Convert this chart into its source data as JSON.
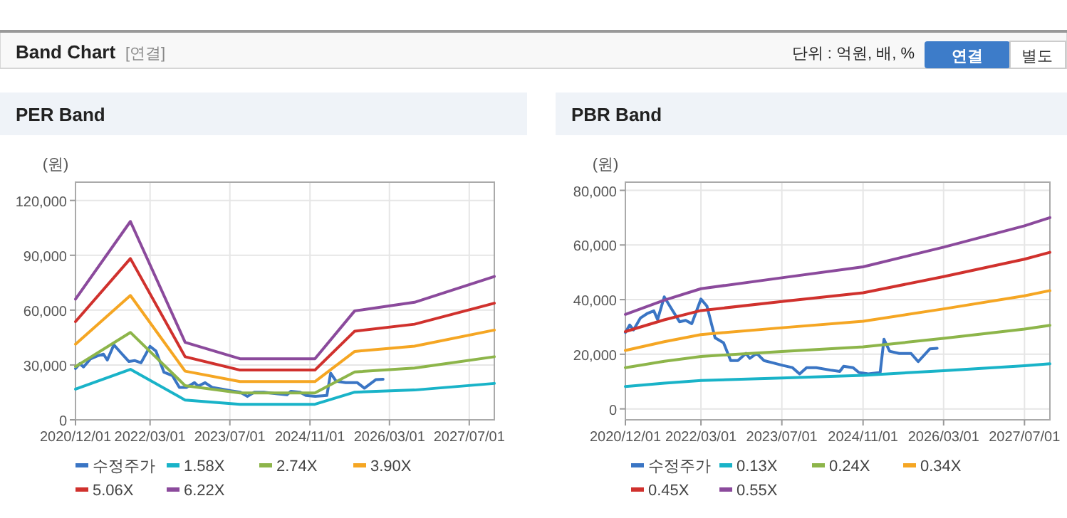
{
  "chart_data": [
    {
      "type": "other",
      "title": "Band Chart",
      "annotations": [
        "[연결]",
        "단위 : 억원, 배, %",
        "연결",
        "별도"
      ]
    },
    {
      "type": "line",
      "title": "PER Band",
      "ylabel": "(원)",
      "grid": true,
      "legend": "bottom",
      "marker": "none",
      "line_style": "solid",
      "xlim": [
        "2020-12-01",
        "2027-12-01"
      ],
      "ylim": [
        0,
        130000
      ],
      "xticks": [
        {
          "value": "2020-12-01",
          "label": "2020/12/01"
        },
        {
          "value": "2022-03-01",
          "label": "2022/03/01"
        },
        {
          "value": "2023-07-01",
          "label": "2023/07/01"
        },
        {
          "value": "2024-11-01",
          "label": "2024/11/01"
        },
        {
          "value": "2026-03-01",
          "label": "2026/03/01"
        },
        {
          "value": "2027-07-01",
          "label": "2027/07/01"
        }
      ],
      "yticks": [
        0,
        {
          "value": 30000,
          "label": "30,000"
        },
        {
          "value": 60000,
          "label": "60,000"
        },
        {
          "value": 90000,
          "label": "90,000"
        },
        {
          "value": 120000,
          "label": "120,000"
        }
      ],
      "x": [
        "2020-12-01",
        "2021-11-01",
        "2022-10-01",
        "2023-09-01",
        "2024-12-01",
        "2025-08-01",
        "2026-08-01",
        "2027-12-01"
      ],
      "series": [
        {
          "name": "수정주가",
          "color": "#3a75c4",
          "x": [
            "2020-12-01",
            "2020-12-27",
            "2021-01-19",
            "2021-03-02",
            "2021-04-14",
            "2021-05-21",
            "2021-06-13",
            "2021-07-23",
            "2021-09-04",
            "2021-10-23",
            "2021-11-29",
            "2022-01-05",
            "2022-03-01",
            "2022-04-06",
            "2022-05-25",
            "2022-07-15",
            "2022-08-27",
            "2022-10-09",
            "2022-11-27",
            "2022-12-20",
            "2023-01-31",
            "2023-03-15",
            "2023-05-11",
            "2023-07-08",
            "2023-09-03",
            "2023-10-16",
            "2023-11-27",
            "2024-01-24",
            "2024-04-18",
            "2024-06-14",
            "2024-07-07",
            "2024-09-02",
            "2024-10-07",
            "2024-12-03",
            "2025-02-12",
            "2025-03-07",
            "2025-04-10",
            "2025-06-07",
            "2025-08-17",
            "2025-09-29",
            "2025-12-09",
            "2026-01-21"
          ],
          "values": [
            28000,
            30700,
            28900,
            33300,
            35000,
            35900,
            32700,
            41000,
            36700,
            31900,
            32400,
            31200,
            40200,
            37600,
            26000,
            24200,
            17700,
            17700,
            20300,
            18500,
            20300,
            17700,
            16800,
            15900,
            15100,
            12800,
            15100,
            15100,
            14200,
            13700,
            15600,
            15100,
            13300,
            12800,
            13300,
            25500,
            21100,
            20300,
            20300,
            17300,
            22000,
            22200
          ]
        },
        {
          "name": "1.58X",
          "color": "#19b3c8",
          "values": [
            16800,
            27600,
            10800,
            8500,
            8500,
            15100,
            16300,
            19900
          ]
        },
        {
          "name": "2.74X",
          "color": "#8db54a",
          "values": [
            29100,
            47800,
            18700,
            14700,
            14700,
            26200,
            28300,
            34500
          ]
        },
        {
          "name": "3.90X",
          "color": "#f5a623",
          "values": [
            41400,
            68000,
            26600,
            20900,
            20900,
            37400,
            40300,
            49100
          ]
        },
        {
          "name": "5.06X",
          "color": "#d0312d",
          "values": [
            53700,
            88200,
            34500,
            27200,
            27200,
            48500,
            52300,
            63800
          ]
        },
        {
          "name": "6.22X",
          "color": "#8b4a9c",
          "values": [
            66000,
            108500,
            42400,
            33400,
            33400,
            59600,
            64300,
            78400
          ]
        }
      ]
    },
    {
      "type": "line",
      "title": "PBR Band",
      "ylabel": "(원)",
      "grid": true,
      "legend": "bottom",
      "marker": "none",
      "line_style": "solid",
      "xlim": [
        "2020-12-01",
        "2027-12-01"
      ],
      "ylim": [
        -4000,
        83000
      ],
      "xticks": [
        {
          "value": "2020-12-01",
          "label": "2020/12/01"
        },
        {
          "value": "2022-03-01",
          "label": "2022/03/01"
        },
        {
          "value": "2023-07-01",
          "label": "2023/07/01"
        },
        {
          "value": "2024-11-01",
          "label": "2024/11/01"
        },
        {
          "value": "2026-03-01",
          "label": "2026/03/01"
        },
        {
          "value": "2027-07-01",
          "label": "2027/07/01"
        }
      ],
      "yticks": [
        0,
        {
          "value": 20000,
          "label": "20,000"
        },
        {
          "value": 40000,
          "label": "40,000"
        },
        {
          "value": 60000,
          "label": "60,000"
        },
        {
          "value": 80000,
          "label": "80,000"
        }
      ],
      "x": [
        "2020-12-01",
        "2021-07-23",
        "2022-03-01",
        "2023-07-01",
        "2024-11-01",
        "2026-03-01",
        "2027-07-01",
        "2027-12-01"
      ],
      "series": [
        {
          "name": "수정주가",
          "color": "#3a75c4",
          "x": [
            "2020-12-01",
            "2020-12-27",
            "2021-01-19",
            "2021-03-02",
            "2021-04-14",
            "2021-05-21",
            "2021-06-13",
            "2021-07-23",
            "2021-09-04",
            "2021-10-23",
            "2021-11-29",
            "2022-01-05",
            "2022-03-01",
            "2022-04-06",
            "2022-05-25",
            "2022-07-15",
            "2022-08-27",
            "2022-10-09",
            "2022-11-27",
            "2022-12-20",
            "2023-01-31",
            "2023-03-15",
            "2023-05-11",
            "2023-07-08",
            "2023-09-03",
            "2023-10-16",
            "2023-11-27",
            "2024-01-24",
            "2024-04-18",
            "2024-06-14",
            "2024-07-07",
            "2024-09-02",
            "2024-10-07",
            "2024-12-03",
            "2025-02-12",
            "2025-03-07",
            "2025-04-10",
            "2025-06-07",
            "2025-08-17",
            "2025-09-29",
            "2025-12-09",
            "2026-01-21"
          ],
          "values": [
            28000,
            30700,
            28900,
            33300,
            35000,
            35900,
            32700,
            41000,
            36700,
            31900,
            32400,
            31200,
            40200,
            37600,
            26000,
            24200,
            17700,
            17700,
            20300,
            18500,
            20300,
            17700,
            16800,
            15900,
            15100,
            12800,
            15100,
            15100,
            14200,
            13700,
            15600,
            15100,
            13300,
            12800,
            13300,
            25500,
            21100,
            20300,
            20300,
            17300,
            22000,
            22200
          ]
        },
        {
          "name": "0.13X",
          "color": "#19b3c8",
          "values": [
            8200,
            9400,
            10400,
            11300,
            12300,
            14000,
            15800,
            16500
          ]
        },
        {
          "name": "0.24X",
          "color": "#8db54a",
          "values": [
            15100,
            17400,
            19200,
            21000,
            22700,
            25800,
            29200,
            30600
          ]
        },
        {
          "name": "0.34X",
          "color": "#f5a623",
          "values": [
            21400,
            24600,
            27200,
            29700,
            32100,
            36600,
            41400,
            43300
          ]
        },
        {
          "name": "0.45X",
          "color": "#d0312d",
          "values": [
            28300,
            32600,
            36000,
            39300,
            42500,
            48400,
            54800,
            57300
          ]
        },
        {
          "name": "0.55X",
          "color": "#8b4a9c",
          "values": [
            34600,
            39800,
            44000,
            48000,
            52000,
            59200,
            67000,
            70000
          ]
        }
      ]
    }
  ]
}
